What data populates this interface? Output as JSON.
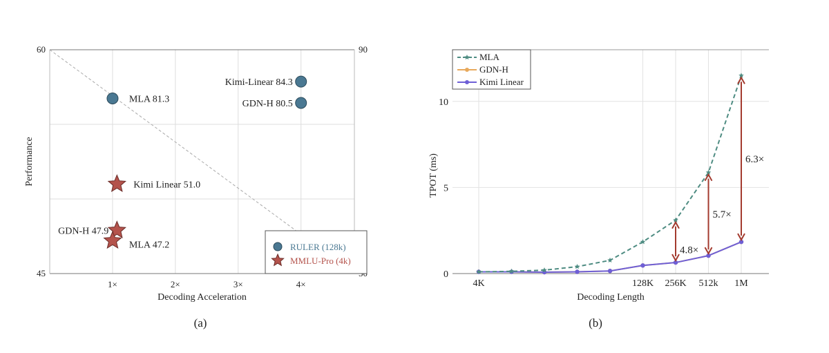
{
  "chart_data": [
    {
      "type": "scatter",
      "caption": "(a)",
      "xlabel": "Decoding Acceleration",
      "ylabel": "Performance",
      "xlim": [
        0,
        4.85
      ],
      "ylim_left": [
        45,
        60
      ],
      "ylim_right": [
        50,
        90
      ],
      "xticks": [
        {
          "v": 1,
          "label": "1×"
        },
        {
          "v": 2,
          "label": "2×"
        },
        {
          "v": 3,
          "label": "3×"
        },
        {
          "v": 4,
          "label": "4×"
        }
      ],
      "yticks_left": [
        {
          "v": 45,
          "label": "45"
        },
        {
          "v": 60,
          "label": "60"
        }
      ],
      "yticks_right": [
        {
          "v": 50,
          "label": "50"
        },
        {
          "v": 90,
          "label": "90"
        }
      ],
      "grid": true,
      "legend_position": "bottom-right",
      "series": [
        {
          "name": "RULER (128k)",
          "axis": "right",
          "marker": "circle",
          "color": "#4a7892",
          "points": [
            {
              "x": 1,
              "y": 81.3,
              "label": "MLA 81.3",
              "label_side": "right"
            },
            {
              "x": 4,
              "y": 84.3,
              "label": "Kimi-Linear 84.3",
              "label_side": "left"
            },
            {
              "x": 4,
              "y": 80.5,
              "label": "GDN-H 80.5",
              "label_side": "left"
            }
          ]
        },
        {
          "name": "MMLU-Pro (4k)",
          "axis": "left",
          "marker": "star",
          "color": "#b4534c",
          "points": [
            {
              "x": 1.07,
              "y": 51.0,
              "label": "Kimi Linear 51.0",
              "label_side": "right"
            },
            {
              "x": 1.07,
              "y": 47.9,
              "label": "GDN-H 47.9",
              "label_side": "left"
            },
            {
              "x": 1,
              "y": 47.2,
              "label": "MLA 47.2",
              "label_side": "right"
            }
          ]
        }
      ]
    },
    {
      "type": "line",
      "caption": "(b)",
      "xlabel": "Decoding Length",
      "ylabel": "TPOT (ms)",
      "categories": [
        "4K",
        "",
        "",
        "",
        "",
        "128K",
        "256K",
        "512k",
        "1M"
      ],
      "ylim": [
        0,
        13
      ],
      "yticks": [
        0,
        5,
        10
      ],
      "grid": true,
      "legend_position": "top-left",
      "series": [
        {
          "name": "MLA",
          "color": "#4e8c82",
          "dashed": true,
          "values": [
            0.1,
            0.13,
            0.2,
            0.4,
            0.77,
            1.84,
            3.1,
            5.87,
            11.5
          ]
        },
        {
          "name": "GDN-H",
          "color": "#e8a95c",
          "dashed": false,
          "values": [
            0.1,
            0.1,
            0.08,
            0.1,
            0.15,
            0.47,
            0.64,
            1.04,
            1.84
          ]
        },
        {
          "name": "Kimi Linear",
          "color": "#6e5fd6",
          "dashed": false,
          "values": [
            0.1,
            0.1,
            0.08,
            0.1,
            0.15,
            0.47,
            0.64,
            1.04,
            1.84
          ]
        }
      ],
      "annotations": [
        {
          "index": 6,
          "label": "4.8×"
        },
        {
          "index": 7,
          "label": "5.7×"
        },
        {
          "index": 8,
          "label": "6.3×"
        }
      ],
      "annotation_color": "#a33a2e"
    }
  ]
}
